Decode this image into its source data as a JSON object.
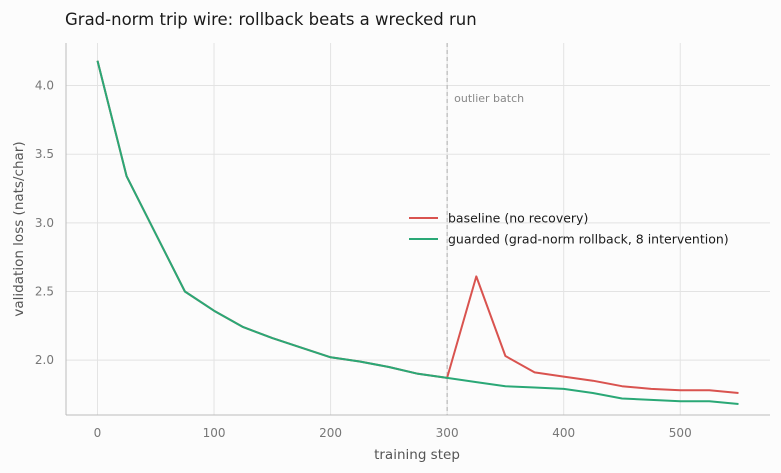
{
  "chart_data": {
    "type": "line",
    "title": "Grad-norm trip wire: rollback beats a wrecked run",
    "xlabel": "training step",
    "ylabel": "validation loss (nats/char)",
    "xlim": [
      -27,
      577
    ],
    "ylim": [
      1.6,
      4.31
    ],
    "xticks": [
      0,
      100,
      200,
      300,
      400,
      500
    ],
    "yticks": [
      2.0,
      2.5,
      3.0,
      3.5,
      4.0
    ],
    "grid": true,
    "legend_position": "center-right",
    "annotation": {
      "x": 300,
      "label": "outlier batch"
    },
    "series": [
      {
        "name": "baseline (no recovery)",
        "color": "#d9534f",
        "x": [
          0,
          25,
          50,
          75,
          100,
          125,
          150,
          175,
          200,
          225,
          250,
          275,
          300,
          325,
          350,
          375,
          400,
          425,
          450,
          475,
          500,
          525,
          550
        ],
        "y": [
          4.18,
          3.34,
          2.92,
          2.5,
          2.36,
          2.24,
          2.16,
          2.09,
          2.02,
          1.99,
          1.95,
          1.9,
          1.87,
          2.61,
          2.03,
          1.91,
          1.88,
          1.85,
          1.81,
          1.79,
          1.78,
          1.78,
          1.76
        ]
      },
      {
        "name": "guarded (grad-norm rollback, 8 intervention)",
        "color": "#2aa876",
        "x": [
          0,
          25,
          50,
          75,
          100,
          125,
          150,
          175,
          200,
          225,
          250,
          275,
          300,
          325,
          350,
          375,
          400,
          425,
          450,
          475,
          500,
          525,
          550
        ],
        "y": [
          4.18,
          3.34,
          2.92,
          2.5,
          2.36,
          2.24,
          2.16,
          2.09,
          2.02,
          1.99,
          1.95,
          1.9,
          1.87,
          1.84,
          1.81,
          1.8,
          1.79,
          1.76,
          1.72,
          1.71,
          1.7,
          1.7,
          1.68
        ]
      }
    ]
  }
}
